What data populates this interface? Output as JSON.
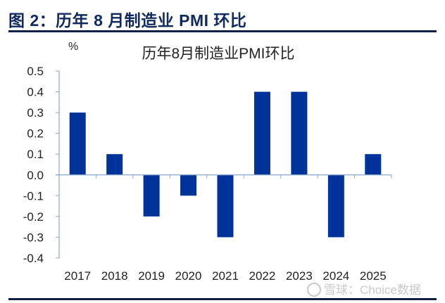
{
  "figure": {
    "caption": "图 2：历年 8 月制造业 PMI 环比",
    "watermark": "雪球：Choice数据"
  },
  "colors": {
    "bar": "#003399",
    "axis": "#8aa6c8",
    "caption": "#0f2a5e",
    "rule": "#0f1f4a"
  },
  "chart_data": {
    "type": "bar",
    "title": "历年8月制造业PMI环比",
    "xlabel": "",
    "ylabel": "%",
    "categories": [
      "2017",
      "2018",
      "2019",
      "2020",
      "2021",
      "2022",
      "2023",
      "2024",
      "2025"
    ],
    "values": [
      0.3,
      0.1,
      -0.2,
      -0.1,
      -0.3,
      0.4,
      0.4,
      -0.3,
      0.1
    ],
    "ylim": [
      -0.4,
      0.5
    ],
    "yticks": [
      "0.5",
      "0.4",
      "0.3",
      "0.2",
      "0.1",
      "0.0",
      "-0.1",
      "-0.2",
      "-0.3",
      "-0.4"
    ],
    "grid": false,
    "legend": "none"
  }
}
